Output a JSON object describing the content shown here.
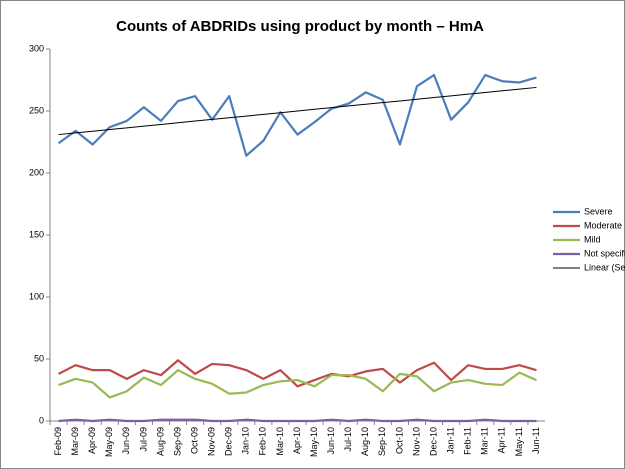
{
  "chart_data": {
    "type": "line",
    "title": "Counts of ABDRIDs using product by month – HmA",
    "categories": [
      "Feb-09",
      "Mar-09",
      "Apr-09",
      "May-09",
      "Jun-09",
      "Jul-09",
      "Aug-09",
      "Sep-09",
      "Oct-09",
      "Nov-09",
      "Dec-09",
      "Jan-10",
      "Feb-10",
      "Mar-10",
      "Apr-10",
      "May-10",
      "Jun-10",
      "Jul-10",
      "Aug-10",
      "Sep-10",
      "Oct-10",
      "Nov-10",
      "Dec-10",
      "Jan-11",
      "Feb-11",
      "Mar-11",
      "Apr-11",
      "May-11",
      "Jun-11"
    ],
    "series": [
      {
        "name": "Severe",
        "color": "#4a7ebb",
        "width": 2.2,
        "values": [
          224,
          234,
          223,
          237,
          242,
          253,
          242,
          258,
          262,
          243,
          262,
          214,
          226,
          249,
          231,
          241,
          252,
          256,
          265,
          259,
          223,
          270,
          279,
          243,
          257,
          279,
          274,
          273,
          277
        ]
      },
      {
        "name": "Moderate",
        "color": "#be4b48",
        "width": 2.2,
        "values": [
          38,
          45,
          41,
          41,
          34,
          41,
          37,
          49,
          38,
          46,
          45,
          41,
          34,
          41,
          28,
          33,
          38,
          36,
          40,
          42,
          31,
          41,
          47,
          33,
          45,
          42,
          42,
          45,
          41
        ]
      },
      {
        "name": "Mild",
        "color": "#98b954",
        "width": 2.2,
        "values": [
          29,
          34,
          31,
          19,
          24,
          35,
          29,
          41,
          34,
          30,
          22,
          23,
          29,
          32,
          33,
          28,
          37,
          37,
          34,
          24,
          38,
          36,
          24,
          31,
          33,
          30,
          29,
          39,
          33
        ]
      },
      {
        "name": "Not specified",
        "color": "#7d60a0",
        "width": 2.2,
        "values": [
          0,
          1,
          0,
          1,
          0,
          0,
          1,
          1,
          1,
          0,
          0,
          1,
          0,
          0,
          0,
          0,
          1,
          0,
          1,
          0,
          0,
          1,
          0,
          0,
          0,
          1,
          0,
          0,
          0
        ]
      },
      {
        "name": "Linear (Severe)",
        "color": "#000000",
        "width": 1,
        "values": [
          231,
          232.4,
          233.7,
          235.1,
          236.4,
          237.8,
          239.1,
          240.5,
          241.9,
          243.2,
          244.6,
          245.9,
          247.3,
          248.6,
          250,
          251.4,
          252.7,
          254.1,
          255.4,
          256.8,
          258.1,
          259.5,
          260.9,
          262.2,
          263.6,
          264.9,
          266.3,
          267.6,
          269
        ]
      }
    ],
    "ylim": [
      0,
      300
    ],
    "yticks": [
      0,
      50,
      100,
      150,
      200,
      250,
      300
    ],
    "grid": false,
    "legend": "right"
  }
}
